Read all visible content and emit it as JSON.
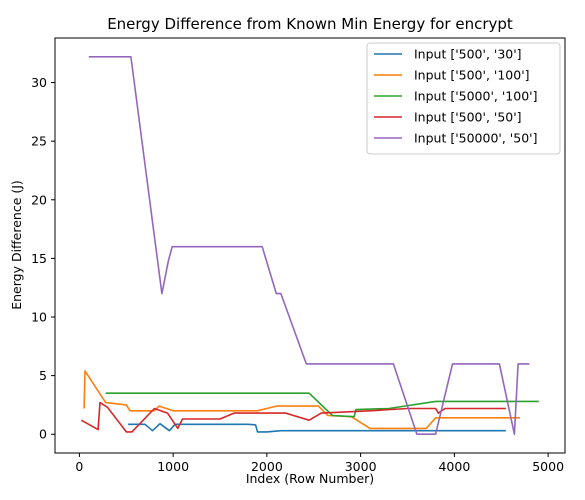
{
  "chart_data": {
    "type": "line",
    "title": "Energy Difference from Known Min Energy for encrypt",
    "xlabel": "Index (Row Number)",
    "ylabel": "Energy Difference (J)",
    "xlim": [
      -260,
      5180
    ],
    "ylim": [
      -1.6,
      33.8
    ],
    "xticks": [
      0,
      1000,
      2000,
      3000,
      4000,
      5000
    ],
    "yticks": [
      0,
      5,
      10,
      15,
      20,
      25,
      30
    ],
    "grid": false,
    "legend_position": "upper right",
    "series": [
      {
        "name": "Input ['500', '30']",
        "color": "#1f77b4",
        "points": [
          [
            520,
            0.85
          ],
          [
            700,
            0.85
          ],
          [
            780,
            0.3
          ],
          [
            860,
            0.9
          ],
          [
            960,
            0.3
          ],
          [
            1020,
            0.85
          ],
          [
            1200,
            0.85
          ],
          [
            1600,
            0.85
          ],
          [
            1800,
            0.85
          ],
          [
            1880,
            0.8
          ],
          [
            1900,
            0.2
          ],
          [
            2000,
            0.2
          ],
          [
            2150,
            0.3
          ],
          [
            4550,
            0.3
          ]
        ]
      },
      {
        "name": "Input ['500', '100']",
        "color": "#ff7f0e",
        "points": [
          [
            50,
            2.2
          ],
          [
            60,
            5.4
          ],
          [
            280,
            2.7
          ],
          [
            500,
            2.5
          ],
          [
            540,
            2.0
          ],
          [
            800,
            2.0
          ],
          [
            850,
            2.4
          ],
          [
            1000,
            2.0
          ],
          [
            1900,
            2.0
          ],
          [
            2100,
            2.4
          ],
          [
            2550,
            2.4
          ],
          [
            2650,
            1.6
          ],
          [
            2900,
            1.5
          ],
          [
            3100,
            0.5
          ],
          [
            3700,
            0.5
          ],
          [
            3800,
            1.4
          ],
          [
            4700,
            1.4
          ]
        ]
      },
      {
        "name": "Input ['5000', '100']",
        "color": "#2ca02c",
        "points": [
          [
            280,
            3.5
          ],
          [
            2450,
            3.5
          ],
          [
            2700,
            1.6
          ],
          [
            2930,
            1.5
          ],
          [
            2950,
            2.1
          ],
          [
            3300,
            2.2
          ],
          [
            3800,
            2.8
          ],
          [
            4900,
            2.8
          ]
        ]
      },
      {
        "name": "Input ['500', '50']",
        "color": "#d62728",
        "points": [
          [
            20,
            1.2
          ],
          [
            200,
            0.4
          ],
          [
            220,
            2.7
          ],
          [
            300,
            2.3
          ],
          [
            500,
            0.2
          ],
          [
            560,
            0.2
          ],
          [
            800,
            2.2
          ],
          [
            940,
            1.8
          ],
          [
            1050,
            0.5
          ],
          [
            1100,
            1.3
          ],
          [
            1500,
            1.3
          ],
          [
            1650,
            1.8
          ],
          [
            2200,
            1.8
          ],
          [
            2450,
            1.2
          ],
          [
            2580,
            1.8
          ],
          [
            3100,
            2.0
          ],
          [
            3500,
            2.2
          ],
          [
            3800,
            2.2
          ],
          [
            3830,
            1.8
          ],
          [
            3900,
            2.2
          ],
          [
            4550,
            2.2
          ]
        ]
      },
      {
        "name": "Input ['50000', '50']",
        "color": "#9467bd",
        "points": [
          [
            100,
            32.2
          ],
          [
            550,
            32.2
          ],
          [
            880,
            12.0
          ],
          [
            950,
            14.8
          ],
          [
            990,
            16.0
          ],
          [
            1950,
            16.0
          ],
          [
            2100,
            12.0
          ],
          [
            2150,
            12.0
          ],
          [
            2420,
            6.0
          ],
          [
            3350,
            6.0
          ],
          [
            3600,
            0.0
          ],
          [
            3800,
            0.0
          ],
          [
            3980,
            6.0
          ],
          [
            4480,
            6.0
          ],
          [
            4640,
            0.0
          ],
          [
            4680,
            6.0
          ],
          [
            4800,
            6.0
          ]
        ]
      }
    ]
  }
}
